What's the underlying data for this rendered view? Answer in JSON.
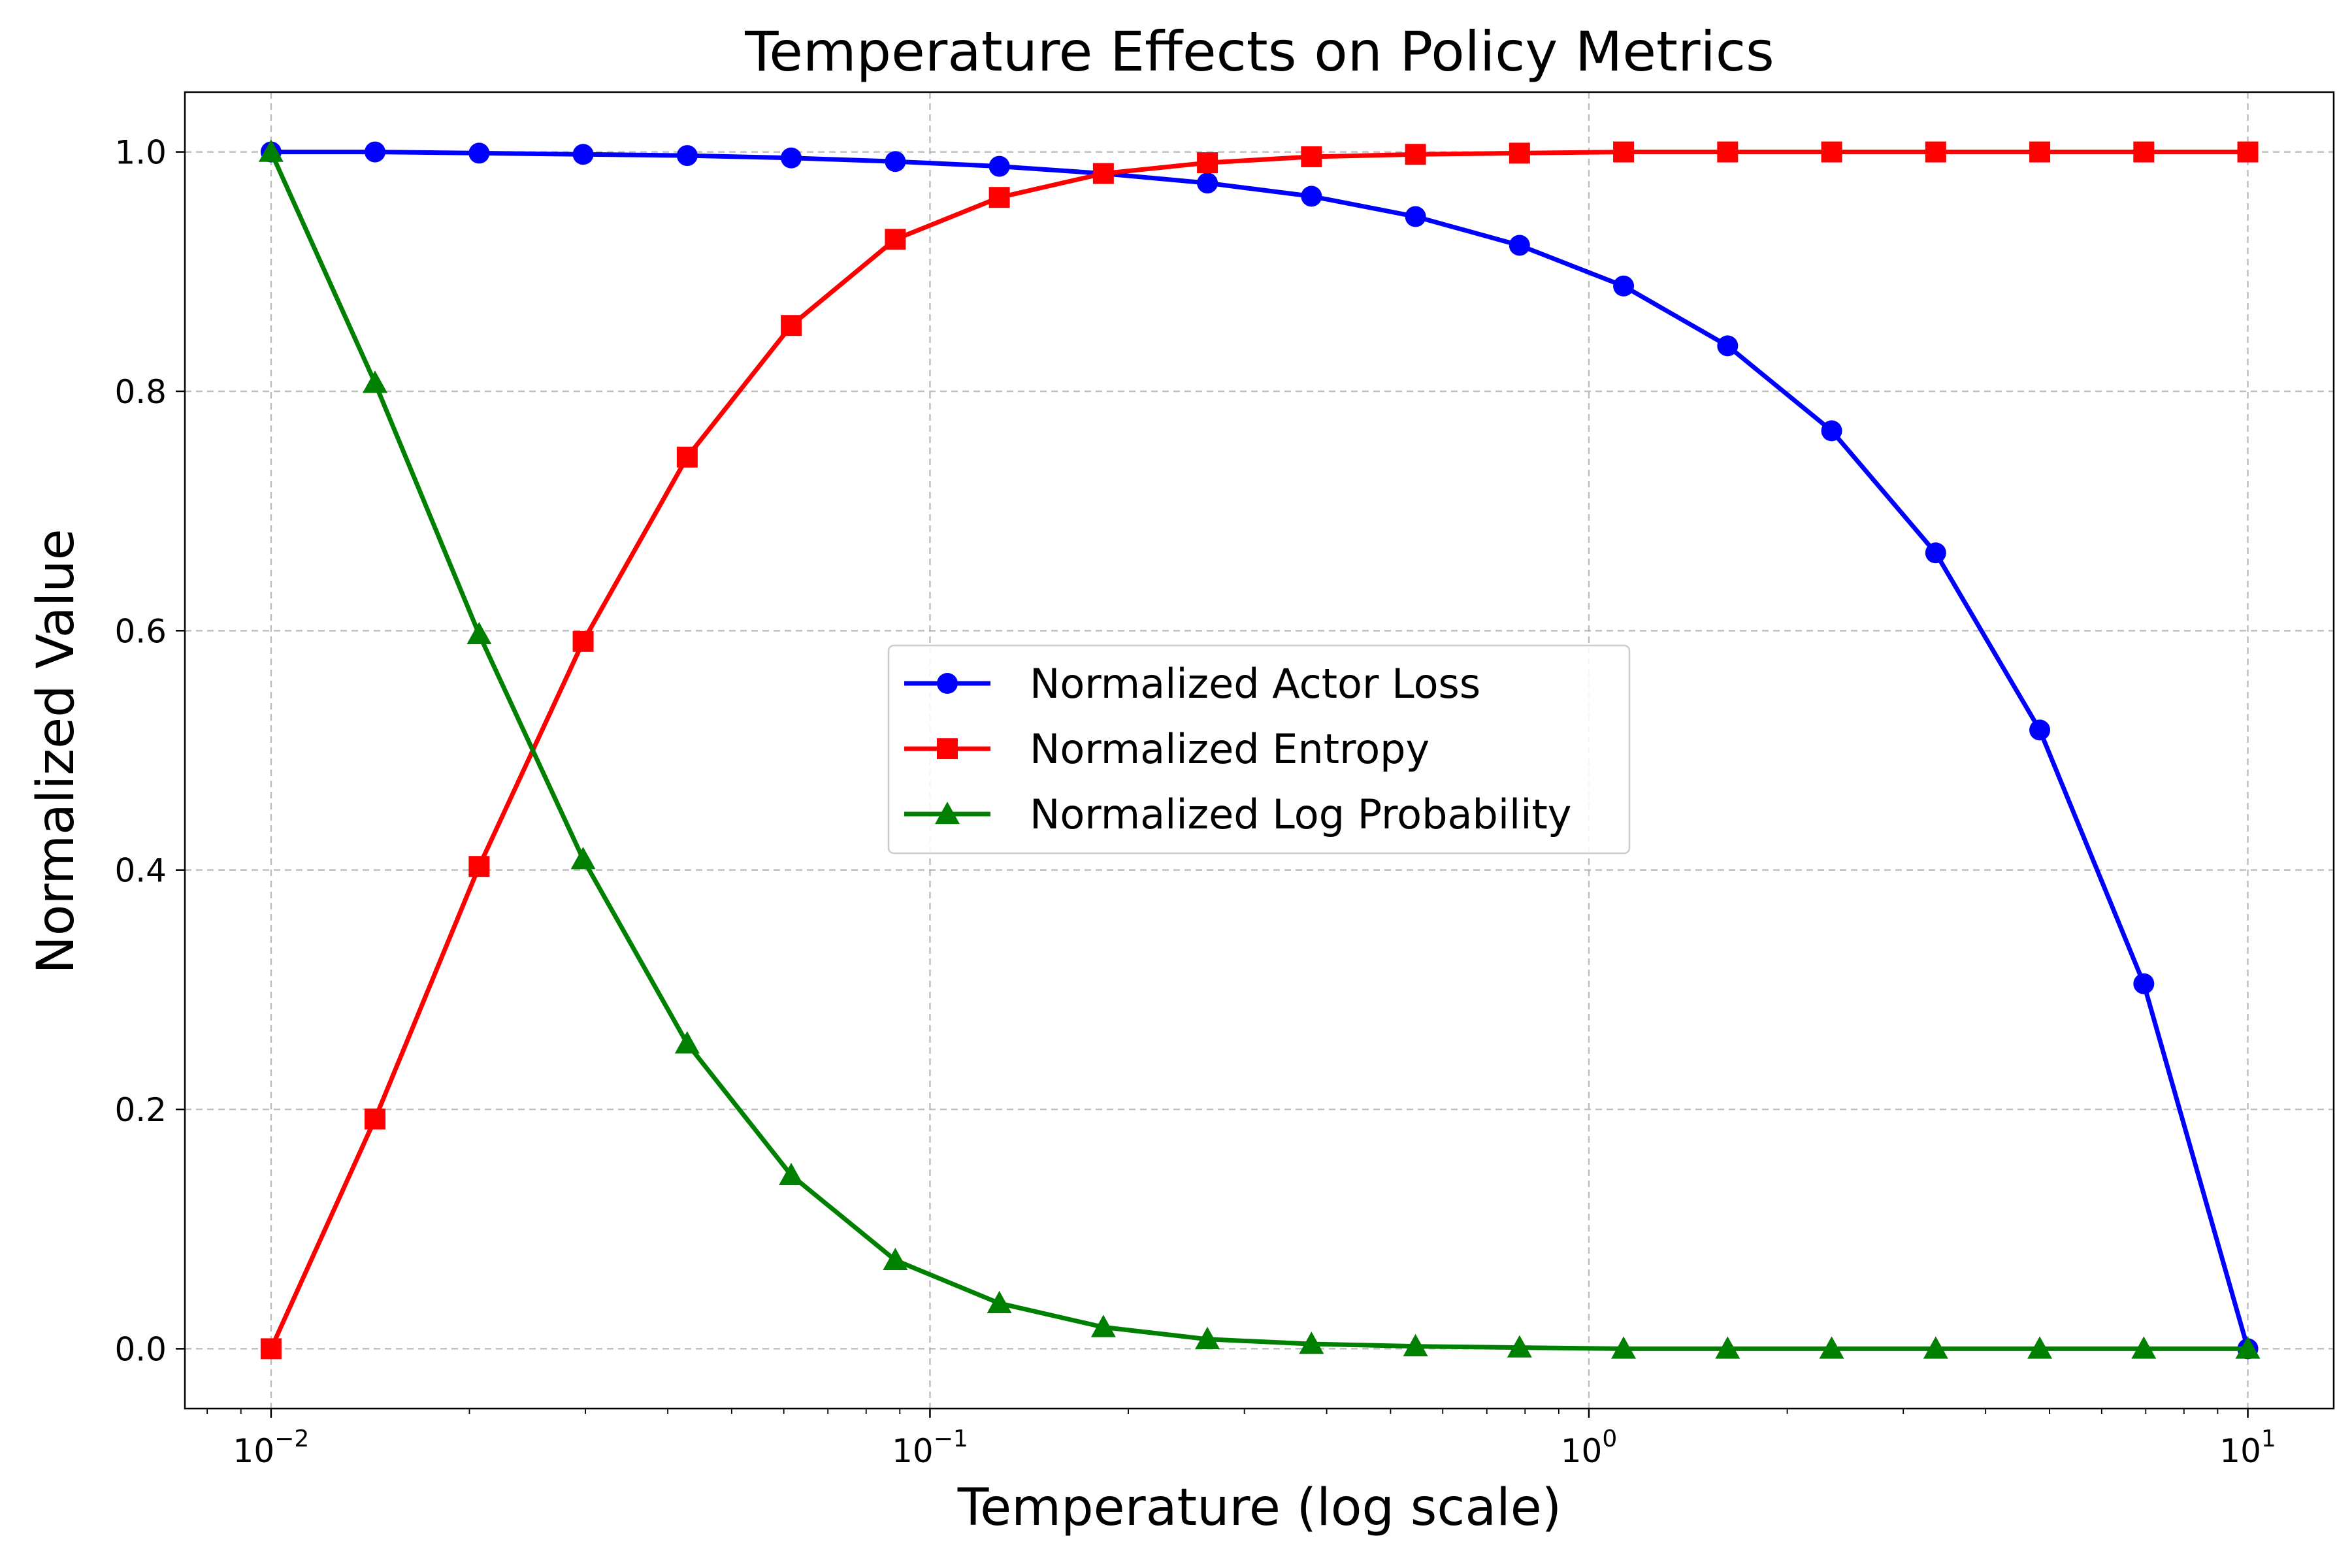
{
  "chart_data": {
    "type": "line",
    "title": "Temperature Effects on Policy Metrics",
    "xlabel": "Temperature (log scale)",
    "ylabel": "Normalized Value",
    "xscale": "log",
    "xlim": [
      0.0074,
      13.5
    ],
    "ylim": [
      -0.05,
      1.05
    ],
    "xticks": [
      {
        "value": 0.01,
        "base": "10",
        "exp": "−2"
      },
      {
        "value": 0.1,
        "base": "10",
        "exp": "−1"
      },
      {
        "value": 1,
        "base": "10",
        "exp": "0"
      },
      {
        "value": 10,
        "base": "10",
        "exp": "1"
      }
    ],
    "yticks": [
      {
        "value": 0.0,
        "label": "0.0"
      },
      {
        "value": 0.2,
        "label": "0.2"
      },
      {
        "value": 0.4,
        "label": "0.4"
      },
      {
        "value": 0.6,
        "label": "0.6"
      },
      {
        "value": 0.8,
        "label": "0.8"
      },
      {
        "value": 1.0,
        "label": "1.0"
      }
    ],
    "grid": true,
    "legend_position": "center",
    "x": [
      0.01,
      0.01438,
      0.02069,
      0.02976,
      0.04281,
      0.06158,
      0.08859,
      0.12743,
      0.1833,
      0.26367,
      0.37927,
      0.54556,
      0.78476,
      1.12884,
      1.62378,
      2.33572,
      3.35982,
      4.83293,
      6.95193,
      10.0
    ],
    "series": [
      {
        "name": "Normalized Actor Loss",
        "color": "#0000ff",
        "marker": "circle",
        "values": [
          1.0,
          1.0,
          0.999,
          0.998,
          0.997,
          0.995,
          0.992,
          0.988,
          0.982,
          0.974,
          0.963,
          0.946,
          0.922,
          0.888,
          0.838,
          0.767,
          0.665,
          0.517,
          0.305,
          0.0
        ]
      },
      {
        "name": "Normalized Entropy",
        "color": "#ff0000",
        "marker": "square",
        "values": [
          0.0,
          0.192,
          0.403,
          0.591,
          0.745,
          0.855,
          0.927,
          0.962,
          0.982,
          0.991,
          0.996,
          0.998,
          0.999,
          1.0,
          1.0,
          1.0,
          1.0,
          1.0,
          1.0,
          1.0
        ]
      },
      {
        "name": "Normalized Log Probability",
        "color": "#008000",
        "marker": "triangle",
        "values": [
          1.0,
          0.807,
          0.597,
          0.409,
          0.255,
          0.145,
          0.074,
          0.038,
          0.018,
          0.008,
          0.004,
          0.002,
          0.001,
          0.0,
          0.0,
          0.0,
          0.0,
          0.0,
          0.0,
          0.0
        ]
      }
    ]
  }
}
